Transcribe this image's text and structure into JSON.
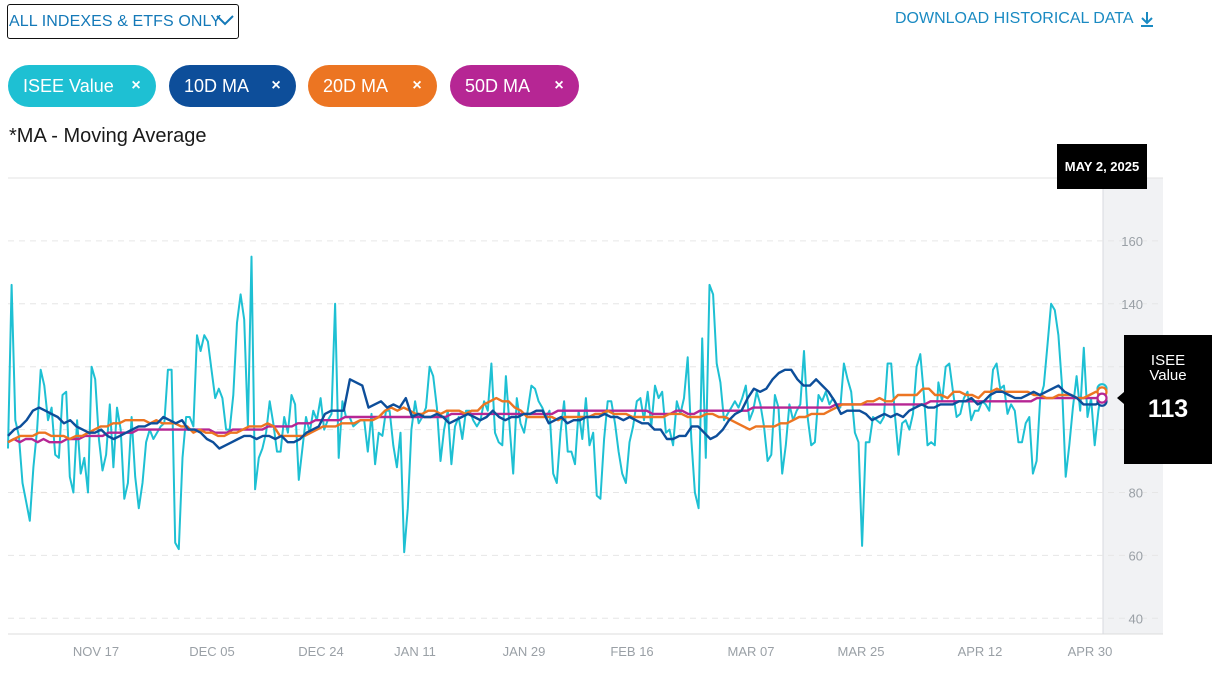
{
  "filter": {
    "label": "ALL INDEXES & ETFS ONLY"
  },
  "download": {
    "label": "DOWNLOAD HISTORICAL DATA"
  },
  "chips": [
    {
      "label": "ISEE Value",
      "close": "×",
      "color": "#1ec0d3"
    },
    {
      "label": "10D MA",
      "close": "×",
      "color": "#0d4e9a"
    },
    {
      "label": "20D MA",
      "close": "×",
      "color": "#ec7522"
    },
    {
      "label": "50D MA",
      "close": "×",
      "color": "#b62694"
    }
  ],
  "note": "*MA - Moving Average",
  "tooltip": {
    "date": "MAY 2, 2025",
    "label": "ISEE Value",
    "value": "113"
  },
  "chart_data": {
    "type": "line",
    "x_ticks": [
      "NOV 17",
      "DEC 05",
      "DEC 24",
      "JAN 11",
      "JAN 29",
      "FEB 16",
      "MAR 07",
      "MAR 25",
      "APR 12",
      "APR 30"
    ],
    "y_ticks": [
      40,
      60,
      80,
      100,
      120,
      140,
      160
    ],
    "y_tick_labels": [
      "40",
      "60",
      "80",
      "",
      "",
      "140",
      "160"
    ],
    "ylim": [
      35,
      180
    ],
    "grid": true,
    "series": [
      {
        "name": "ISEE Value",
        "color": "#1ec0d3",
        "values": [
          94,
          146,
          103,
          98,
          83,
          77,
          71,
          88,
          100,
          119,
          114,
          103,
          107,
          92,
          91,
          111,
          112,
          85,
          80,
          103,
          86,
          91,
          80,
          120,
          116,
          97,
          87,
          92,
          108,
          88,
          107,
          100,
          78,
          83,
          104,
          85,
          75,
          83,
          96,
          100,
          97,
          99,
          101,
          102,
          119,
          119,
          64,
          62,
          91,
          104,
          104,
          101,
          130,
          125,
          130,
          128,
          119,
          110,
          113,
          110,
          100,
          100,
          111,
          134,
          143,
          135,
          101,
          155,
          81,
          91,
          94,
          99,
          109,
          102,
          93,
          93,
          104,
          99,
          111,
          108,
          84,
          94,
          104,
          99,
          106,
          103,
          110,
          100,
          103,
          105,
          140,
          91,
          109,
          104,
          104,
          101,
          102,
          103,
          103,
          93,
          105,
          89,
          99,
          98,
          106,
          106,
          95,
          88,
          99,
          61,
          75,
          100,
          109,
          102,
          104,
          107,
          120,
          117,
          107,
          90,
          100,
          106,
          89,
          101,
          104,
          97,
          106,
          106,
          103,
          101,
          103,
          109,
          106,
          121,
          99,
          96,
          95,
          117,
          101,
          86,
          110,
          102,
          99,
          106,
          114,
          113,
          109,
          107,
          104,
          106,
          86,
          83,
          99,
          109,
          93,
          93,
          89,
          106,
          97,
          110,
          95,
          99,
          79,
          78,
          97,
          109,
          109,
          102,
          93,
          86,
          83,
          96,
          101,
          109,
          110,
          103,
          112,
          101,
          114,
          110,
          112,
          99,
          100,
          95,
          109,
          105,
          110,
          123,
          97,
          80,
          75,
          129,
          91,
          146,
          143,
          121,
          115,
          103,
          105,
          107,
          109,
          107,
          110,
          114,
          103,
          106,
          112,
          108,
          101,
          90,
          92,
          111,
          107,
          86,
          95,
          108,
          103,
          106,
          108,
          125,
          104,
          95,
          96,
          111,
          109,
          112,
          108,
          110,
          108,
          107,
          121,
          116,
          112,
          99,
          96,
          63,
          96,
          96,
          104,
          103,
          102,
          104,
          121,
          121,
          105,
          92,
          102,
          103,
          100,
          105,
          120,
          124,
          111,
          95,
          96,
          95,
          115,
          109,
          120,
          121,
          112,
          104,
          105,
          110,
          112,
          103,
          106,
          106,
          109,
          108,
          106,
          119,
          121,
          113,
          114,
          105,
          108,
          106,
          96,
          96,
          102,
          104,
          86,
          90,
          110,
          114,
          127,
          140,
          138,
          130,
          114,
          85,
          95,
          107,
          117,
          106,
          126,
          104,
          110,
          95,
          106,
          113
        ]
      },
      {
        "name": "10D MA",
        "color": "#0d4e9a",
        "values": [
          98,
          100,
          101,
          103,
          106,
          107,
          106,
          105,
          104,
          102,
          103,
          101,
          100,
          99,
          99,
          100,
          98,
          97,
          98,
          99,
          100,
          101,
          101,
          102,
          102,
          104,
          103,
          102,
          103,
          100,
          100,
          99,
          97,
          96,
          94,
          95,
          96,
          97,
          98,
          98,
          97,
          98,
          98,
          97,
          98,
          96,
          96,
          97,
          99,
          100,
          101,
          105,
          106,
          106,
          106,
          116,
          115,
          114,
          107,
          108,
          109,
          107,
          108,
          107,
          110,
          104,
          105,
          104,
          104,
          105,
          104,
          102,
          103,
          104,
          105,
          104,
          103,
          104,
          106,
          104,
          103,
          104,
          104,
          105,
          105,
          106,
          106,
          102,
          103,
          104,
          102,
          103,
          103,
          104,
          104,
          104,
          105,
          104,
          104,
          103,
          104,
          103,
          102,
          102,
          100,
          100,
          97,
          97,
          98,
          98,
          101,
          101,
          99,
          97,
          98,
          100,
          103,
          105,
          106,
          110,
          113,
          112,
          113,
          116,
          118,
          119,
          119,
          116,
          114,
          114,
          116,
          114,
          112,
          109,
          105,
          106,
          106,
          106,
          105,
          103,
          104,
          105,
          104,
          105,
          104,
          106,
          107,
          108,
          107,
          107,
          108,
          108,
          108,
          109,
          109,
          110,
          108,
          109,
          111,
          112,
          112,
          111,
          110,
          110,
          111,
          112,
          111,
          112,
          113,
          114,
          112,
          111,
          110,
          108,
          108,
          108,
          109
        ]
      },
      {
        "name": "20D MA",
        "color": "#ec7522",
        "values": [
          96,
          97,
          98,
          98,
          98,
          99,
          99,
          98,
          98,
          98,
          97,
          98,
          98,
          99,
          100,
          101,
          101,
          102,
          102,
          103,
          103,
          103,
          103,
          102,
          103,
          102,
          102,
          102,
          101,
          101,
          99,
          100,
          99,
          99,
          98,
          98,
          99,
          99,
          100,
          101,
          101,
          101,
          102,
          101,
          98,
          98,
          98,
          98,
          98,
          99,
          100,
          101,
          101,
          101,
          102,
          102,
          102,
          103,
          103,
          103,
          104,
          106,
          107,
          106,
          107,
          106,
          105,
          105,
          106,
          106,
          105,
          106,
          106,
          106,
          105,
          106,
          106,
          108,
          109,
          110,
          109,
          109,
          107,
          106,
          104,
          104,
          104,
          104,
          104,
          103,
          104,
          104,
          104,
          104,
          104,
          105,
          105,
          106,
          105,
          105,
          105,
          104,
          104,
          104,
          104,
          104,
          104,
          105,
          105,
          105,
          104,
          104,
          104,
          105,
          105,
          104,
          104,
          103,
          102,
          101,
          100,
          101,
          101,
          101,
          101,
          102,
          102,
          103,
          104,
          104,
          105,
          105,
          105,
          106,
          107,
          108,
          108,
          108,
          108,
          109,
          109,
          110,
          109,
          109,
          111,
          111,
          111,
          111,
          113,
          113,
          111,
          111,
          110,
          112,
          112,
          111,
          111,
          110,
          112,
          112,
          113,
          112,
          112,
          112,
          112,
          112,
          111,
          111,
          110,
          110,
          111,
          111,
          111,
          110,
          110,
          111,
          112,
          112
        ]
      },
      {
        "name": "50D MA",
        "color": "#b62694",
        "values": [
          96,
          97,
          96,
          97,
          97,
          96,
          97,
          96,
          96,
          96,
          97,
          97,
          97,
          98,
          98,
          98,
          98,
          99,
          99,
          99,
          99,
          99,
          100,
          100,
          100,
          100,
          100,
          100,
          100,
          100,
          100,
          100,
          100,
          100,
          100,
          99,
          99,
          99,
          100,
          100,
          100,
          100,
          100,
          100,
          101,
          101,
          101,
          101,
          101,
          102,
          102,
          102,
          103,
          103,
          103,
          103,
          103,
          104,
          104,
          104,
          104,
          104,
          104,
          104,
          104,
          104,
          104,
          104,
          104,
          104,
          104,
          104,
          104,
          104,
          104,
          105,
          105,
          105,
          105,
          105,
          105,
          105,
          105,
          105,
          105,
          105,
          105,
          105,
          105,
          105,
          105,
          105,
          105,
          106,
          106,
          106,
          106,
          106,
          106,
          106,
          106,
          106,
          106,
          106,
          106,
          106,
          106,
          106,
          106,
          105,
          105,
          105,
          105,
          106,
          106,
          105,
          105,
          106,
          106,
          106,
          106,
          106,
          106,
          106,
          106,
          106,
          107,
          107,
          107,
          107,
          107,
          107,
          107,
          107,
          107,
          107,
          107,
          107,
          107,
          107,
          108,
          108,
          108,
          108,
          108,
          108,
          108,
          108,
          108,
          108,
          108,
          108,
          108,
          108,
          108,
          108,
          109,
          109,
          109,
          109,
          109,
          109,
          109,
          109,
          109,
          109,
          109,
          109,
          109,
          109,
          109,
          109,
          109,
          109,
          110,
          110,
          110,
          110,
          110,
          110,
          110,
          110,
          110,
          110,
          110,
          110
        ]
      }
    ]
  }
}
